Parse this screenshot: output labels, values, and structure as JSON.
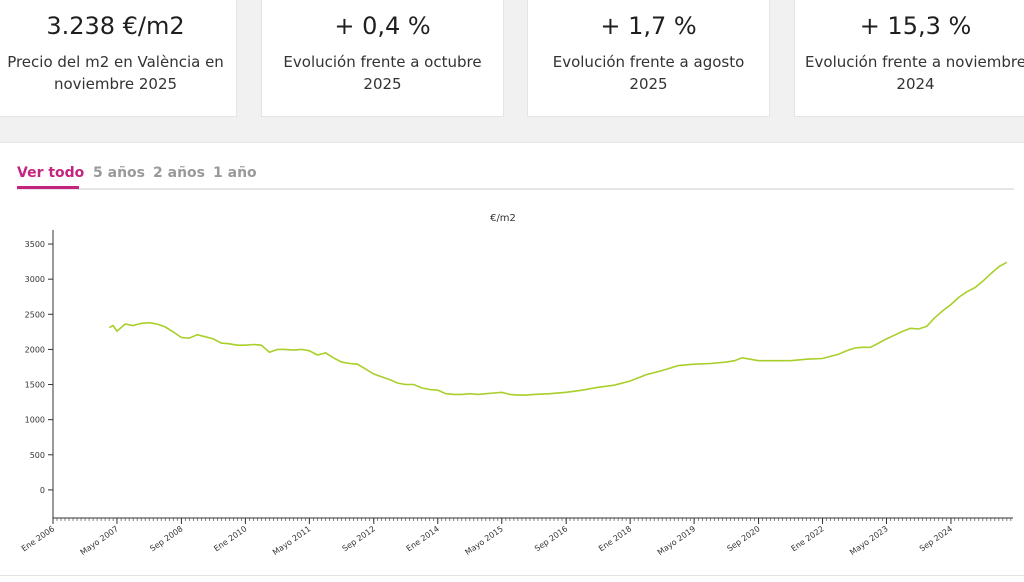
{
  "stats": [
    {
      "value": "3.238 €/m2",
      "label_line1": "Precio del m2 en València en",
      "label_line2": "noviembre 2025"
    },
    {
      "value": "+ 0,4 %",
      "label_line1": "Evolución frente a octubre",
      "label_line2": "2025"
    },
    {
      "value": "+ 1,7 %",
      "label_line1": "Evolución frente a agosto",
      "label_line2": "2025"
    },
    {
      "value": "+ 15,3 %",
      "label_line1": "Evolución frente a noviembre",
      "label_line2": "2024"
    }
  ],
  "tabs": [
    "Ver todo",
    "5 años",
    "2 años",
    "1 año"
  ],
  "active_tab": 0,
  "colors": {
    "accent": "#c3247d",
    "series": "#a8cf2a",
    "axis": "#333333"
  },
  "chart_data": {
    "type": "line",
    "title": "€/m2",
    "xlabel": "",
    "ylabel": "",
    "ylim": [
      -400,
      3700
    ],
    "yticks": [
      0,
      500,
      1000,
      1500,
      2000,
      2500,
      3000,
      3500
    ],
    "xlim": [
      2006.0,
      2025.96
    ],
    "xticks": [
      {
        "label": "Ene 2006",
        "x": 2006.0
      },
      {
        "label": "Mayo 2007",
        "x": 2007.33
      },
      {
        "label": "Sep 2008",
        "x": 2008.67
      },
      {
        "label": "Ene 2010",
        "x": 2010.0
      },
      {
        "label": "Mayo 2011",
        "x": 2011.33
      },
      {
        "label": "Sep 2012",
        "x": 2012.67
      },
      {
        "label": "Ene 2014",
        "x": 2014.0
      },
      {
        "label": "Mayo 2015",
        "x": 2015.33
      },
      {
        "label": "Sep 2016",
        "x": 2016.67
      },
      {
        "label": "Ene 2018",
        "x": 2018.0
      },
      {
        "label": "Mayo 2019",
        "x": 2019.33
      },
      {
        "label": "Sep 2020",
        "x": 2020.67
      },
      {
        "label": "Ene 2022",
        "x": 2022.0
      },
      {
        "label": "Mayo 2023",
        "x": 2023.33
      },
      {
        "label": "Sep 2024",
        "x": 2024.67
      }
    ],
    "series": [
      {
        "name": "€/m2",
        "x": [
          2007.17,
          2007.25,
          2007.33,
          2007.5,
          2007.67,
          2007.83,
          2008.0,
          2008.17,
          2008.33,
          2008.5,
          2008.67,
          2008.83,
          2009.0,
          2009.17,
          2009.33,
          2009.5,
          2009.67,
          2009.83,
          2010.0,
          2010.17,
          2010.33,
          2010.5,
          2010.67,
          2010.83,
          2011.0,
          2011.17,
          2011.33,
          2011.5,
          2011.67,
          2011.83,
          2012.0,
          2012.17,
          2012.33,
          2012.5,
          2012.67,
          2012.83,
          2013.0,
          2013.17,
          2013.33,
          2013.5,
          2013.67,
          2013.83,
          2014.0,
          2014.17,
          2014.33,
          2014.5,
          2014.67,
          2014.83,
          2015.0,
          2015.17,
          2015.33,
          2015.5,
          2015.67,
          2015.83,
          2016.0,
          2016.33,
          2016.67,
          2017.0,
          2017.33,
          2017.67,
          2018.0,
          2018.33,
          2018.67,
          2019.0,
          2019.33,
          2019.67,
          2020.0,
          2020.17,
          2020.33,
          2020.67,
          2021.0,
          2021.33,
          2021.67,
          2022.0,
          2022.33,
          2022.5,
          2022.67,
          2022.83,
          2023.0,
          2023.33,
          2023.67,
          2023.83,
          2024.0,
          2024.17,
          2024.33,
          2024.5,
          2024.67,
          2024.83,
          2025.0,
          2025.17,
          2025.33,
          2025.5,
          2025.67,
          2025.83
        ],
        "values": [
          2310,
          2340,
          2260,
          2360,
          2340,
          2370,
          2380,
          2360,
          2320,
          2250,
          2170,
          2160,
          2210,
          2180,
          2150,
          2090,
          2080,
          2060,
          2060,
          2070,
          2060,
          1960,
          2000,
          2000,
          1990,
          2000,
          1980,
          1920,
          1950,
          1880,
          1820,
          1800,
          1790,
          1720,
          1650,
          1610,
          1570,
          1520,
          1500,
          1500,
          1450,
          1430,
          1420,
          1370,
          1360,
          1360,
          1370,
          1360,
          1370,
          1380,
          1390,
          1360,
          1350,
          1350,
          1360,
          1370,
          1390,
          1420,
          1460,
          1490,
          1550,
          1640,
          1700,
          1770,
          1790,
          1800,
          1820,
          1840,
          1880,
          1840,
          1840,
          1840,
          1860,
          1870,
          1930,
          1980,
          2020,
          2030,
          2030,
          2150,
          2260,
          2300,
          2290,
          2330,
          2450,
          2550,
          2640,
          2740,
          2820,
          2880,
          2970,
          3080,
          3180,
          3240
        ]
      }
    ]
  }
}
